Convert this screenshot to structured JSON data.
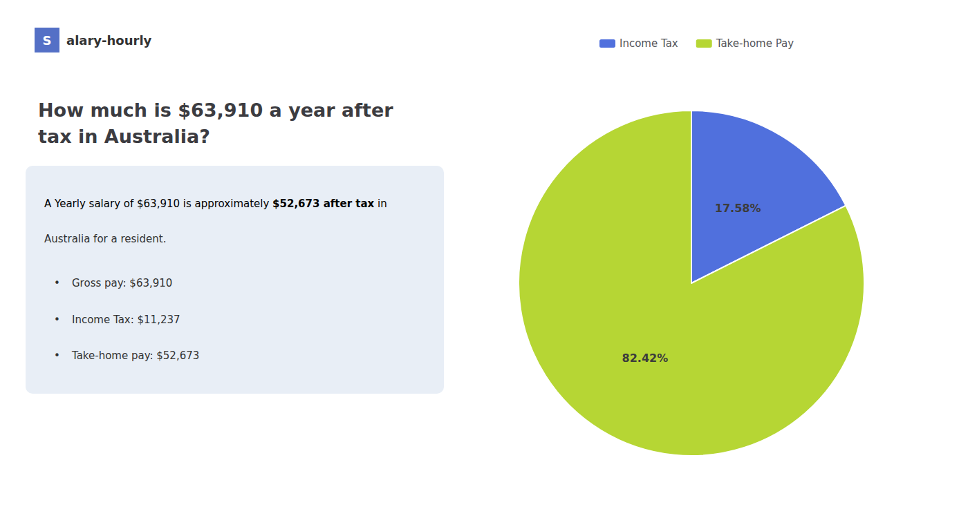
{
  "chart_data": {
    "type": "pie",
    "title": "How much is $63,910 a year after tax in Australia?",
    "categories": [
      "Income Tax",
      "Take-home Pay"
    ],
    "values": [
      17.58,
      82.42
    ],
    "value_labels": [
      "17.58%",
      "82.42%"
    ],
    "data_labels": true,
    "legend": "top",
    "annotations": [
      "S",
      "alary-hourly",
      "A Yearly salary of $63,910 is approximately ",
      "$52,673 after tax",
      " in",
      "Australia for a resident.",
      "•",
      "Gross pay: $63,910",
      "•",
      "Income Tax: $11,237",
      "•",
      "Take-home pay: $52,673"
    ]
  }
}
